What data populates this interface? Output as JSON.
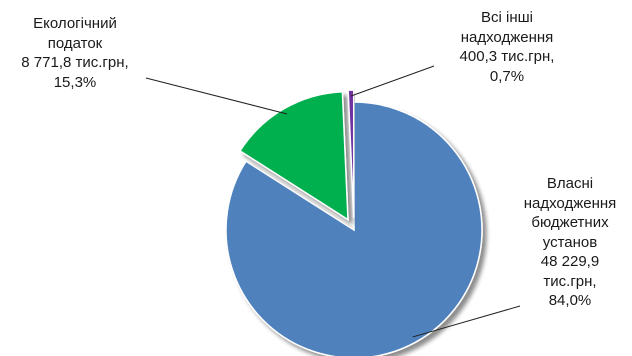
{
  "chart_data": {
    "type": "pie",
    "title": "",
    "slices": [
      {
        "name": "Власні надходження бюджетних установ",
        "value_text": "48 229,9 тис.грн",
        "value": 48229.9,
        "percent": 84.0,
        "percent_text": "84,0%",
        "color": "#4f81bd",
        "exploded": false,
        "label_lines": [
          "Власні",
          "надходження",
          "бюджетних",
          "установ",
          "48 229,9",
          "тис.грн,",
          "84,0%"
        ]
      },
      {
        "name": "Екологічний податок",
        "value_text": "8 771,8 тис.грн",
        "value": 8771.8,
        "percent": 15.3,
        "percent_text": "15,3%",
        "color": "#00b050",
        "exploded": true,
        "label_lines": [
          "Екологічний",
          "податок",
          "8 771,8 тис.грн,",
          "15,3%"
        ]
      },
      {
        "name": "Всі інші надходження",
        "value_text": "400,3 тис.грн",
        "value": 400.3,
        "percent": 0.7,
        "percent_text": "0,7%",
        "color": "#7030a0",
        "exploded": true,
        "label_lines": [
          "Всі інші",
          "надходження",
          "400,3 тис.грн,",
          "0,7%"
        ]
      }
    ],
    "legend": "none"
  }
}
